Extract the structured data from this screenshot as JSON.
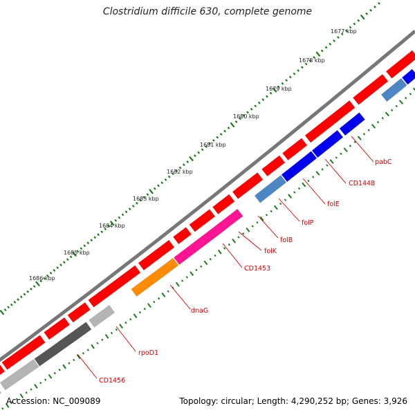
{
  "title": "Clostridium difficile 630, complete genome",
  "footer": {
    "accession": "Accession: NC_009089",
    "topology": "Topology: circular; Length: 4,290,252 bp; Genes: 3,926"
  },
  "colors": {
    "forward_gene": "#ff0000",
    "backbone": "#777777",
    "dots": "#1a7a1a",
    "label": "#cc0000",
    "blue": "#0000ee",
    "steelblue": "#4d86c4",
    "magenta": "#ff1493",
    "orange": "#ff8c00",
    "dark_gray": "#555555",
    "light_gray": "#b4b4b4"
  },
  "ticks": [
    "1677 kbp",
    "1678 kbp",
    "1679 kbp",
    "1680 kbp",
    "1681 kbp",
    "1682 kbp",
    "1683 kbp",
    "1684 kbp",
    "1685 kbp",
    "1686 kbp"
  ],
  "gene_labels": [
    "pabC",
    "CD1448",
    "folE",
    "folP",
    "folB",
    "folK",
    "CD1453",
    "dnaG",
    "rpoD1",
    "CD1456"
  ]
}
